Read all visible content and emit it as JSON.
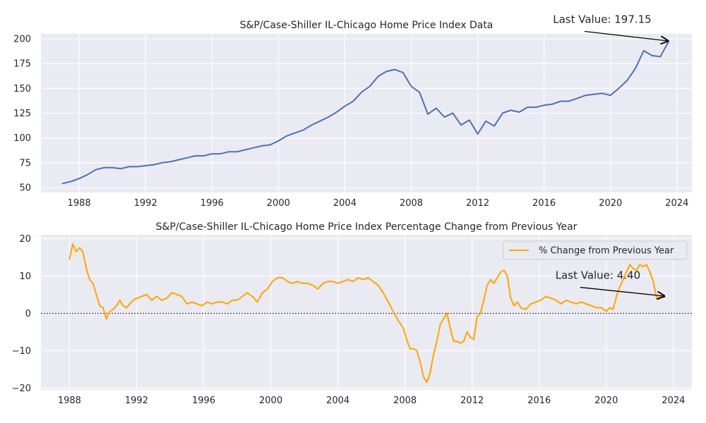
{
  "colors": {
    "price_line": "#4c72b0",
    "pct_line": "#ffa500",
    "plot_background": "#eaeaf2",
    "grid": "#ffffff"
  },
  "chart_data": [
    {
      "type": "line",
      "title": "S&P/Case-Shiller IL-Chicago Home Price Index Data",
      "xlabel": "",
      "ylabel": "",
      "xlim": [
        1985.7,
        2024.9
      ],
      "ylim": [
        45,
        205
      ],
      "x_ticks": [
        1988,
        1992,
        1996,
        2000,
        2004,
        2008,
        2012,
        2016,
        2020,
        2024
      ],
      "x_tick_labels": [
        "1988",
        "1992",
        "1996",
        "2000",
        "2004",
        "2008",
        "2012",
        "2016",
        "2020",
        "2024"
      ],
      "y_ticks": [
        50,
        75,
        100,
        125,
        150,
        175,
        200
      ],
      "y_tick_labels": [
        "50",
        "75",
        "100",
        "125",
        "150",
        "175",
        "200"
      ],
      "grid": true,
      "annotation": {
        "text": "Last Value: 197.15",
        "point": [
          2023.5,
          197.15
        ],
        "text_pos": [
          2019.5,
          216
        ]
      },
      "series": [
        {
          "name": "Home Price Index",
          "x": [
            1987.0,
            1987.5,
            1988.0,
            1988.5,
            1989.0,
            1989.5,
            1990.0,
            1990.5,
            1991.0,
            1991.5,
            1992.0,
            1992.5,
            1993.0,
            1993.5,
            1994.0,
            1994.5,
            1995.0,
            1995.5,
            1996.0,
            1996.5,
            1997.0,
            1997.5,
            1998.0,
            1998.5,
            1999.0,
            1999.5,
            2000.0,
            2000.5,
            2001.0,
            2001.5,
            2002.0,
            2002.5,
            2003.0,
            2003.5,
            2004.0,
            2004.5,
            2005.0,
            2005.5,
            2006.0,
            2006.5,
            2007.0,
            2007.5,
            2008.0,
            2008.5,
            2009.0,
            2009.5,
            2010.0,
            2010.5,
            2011.0,
            2011.5,
            2012.0,
            2012.5,
            2013.0,
            2013.5,
            2014.0,
            2014.5,
            2015.0,
            2015.5,
            2016.0,
            2016.5,
            2017.0,
            2017.5,
            2018.0,
            2018.5,
            2019.0,
            2019.5,
            2020.0,
            2020.5,
            2021.0,
            2021.5,
            2022.0,
            2022.5,
            2023.0,
            2023.5
          ],
          "y": [
            54,
            56,
            59,
            63,
            68,
            70,
            70,
            69,
            71,
            71,
            72,
            73,
            75,
            76,
            78,
            80,
            82,
            82,
            84,
            84,
            86,
            86,
            88,
            90,
            92,
            93,
            97,
            102,
            105,
            108,
            113,
            117,
            121,
            126,
            132,
            137,
            146,
            152,
            162,
            167,
            169,
            166,
            152,
            146,
            124,
            130,
            121,
            125,
            113,
            118,
            104,
            117,
            112,
            125,
            128,
            126,
            131,
            131,
            133,
            134,
            137,
            137,
            140,
            143,
            144,
            145,
            143,
            150,
            158,
            170,
            188,
            183,
            182,
            197.15
          ]
        }
      ]
    },
    {
      "type": "line",
      "title": "S&P/Case-Shiller IL-Chicago Home Price Index Percentage Change from Previous Year",
      "xlabel": "",
      "ylabel": "",
      "xlim": [
        1986.3,
        2025.1
      ],
      "ylim": [
        -20.5,
        21
      ],
      "x_ticks": [
        1988,
        1992,
        1996,
        2000,
        2004,
        2008,
        2012,
        2016,
        2020,
        2024
      ],
      "x_tick_labels": [
        "1988",
        "1992",
        "1996",
        "2000",
        "2004",
        "2008",
        "2012",
        "2016",
        "2020",
        "2024"
      ],
      "y_ticks": [
        -20,
        -10,
        0,
        10,
        20
      ],
      "y_tick_labels": [
        "−20",
        "−10",
        "0",
        "10",
        "20"
      ],
      "grid": true,
      "zero_line": true,
      "legend": {
        "position": "top-right",
        "entries": [
          "% Change from Previous Year"
        ]
      },
      "annotation": {
        "text": "Last Value: 4.40",
        "point": [
          2023.5,
          4.4
        ],
        "text_pos": [
          2019.5,
          9.2
        ]
      },
      "series": [
        {
          "name": "% Change from Previous Year",
          "x": [
            1988.0,
            1988.2,
            1988.4,
            1988.6,
            1988.8,
            1989.0,
            1989.2,
            1989.4,
            1989.6,
            1989.8,
            1990.0,
            1990.2,
            1990.4,
            1990.6,
            1990.8,
            1991.0,
            1991.2,
            1991.4,
            1991.6,
            1991.8,
            1992.0,
            1992.3,
            1992.6,
            1992.9,
            1993.2,
            1993.5,
            1993.8,
            1994.1,
            1994.4,
            1994.7,
            1995.0,
            1995.3,
            1995.6,
            1995.9,
            1996.2,
            1996.5,
            1996.8,
            1997.1,
            1997.4,
            1997.7,
            1998.0,
            1998.3,
            1998.6,
            1998.9,
            1999.2,
            1999.5,
            1999.8,
            2000.1,
            2000.4,
            2000.7,
            2001.0,
            2001.3,
            2001.6,
            2001.9,
            2002.2,
            2002.5,
            2002.8,
            2003.1,
            2003.4,
            2003.7,
            2004.0,
            2004.3,
            2004.6,
            2004.9,
            2005.2,
            2005.5,
            2005.8,
            2006.1,
            2006.4,
            2006.7,
            2007.0,
            2007.3,
            2007.6,
            2007.9,
            2008.1,
            2008.3,
            2008.5,
            2008.7,
            2008.9,
            2009.1,
            2009.3,
            2009.5,
            2009.7,
            2009.9,
            2010.1,
            2010.3,
            2010.5,
            2010.7,
            2010.9,
            2011.1,
            2011.3,
            2011.5,
            2011.7,
            2011.9,
            2012.1,
            2012.3,
            2012.5,
            2012.7,
            2012.9,
            2013.1,
            2013.3,
            2013.5,
            2013.7,
            2013.9,
            2014.1,
            2014.3,
            2014.5,
            2014.7,
            2014.9,
            2015.2,
            2015.5,
            2015.8,
            2016.1,
            2016.4,
            2016.7,
            2017.0,
            2017.3,
            2017.6,
            2017.9,
            2018.2,
            2018.5,
            2018.8,
            2019.1,
            2019.4,
            2019.7,
            2020.0,
            2020.2,
            2020.4,
            2020.6,
            2020.8,
            2021.0,
            2021.2,
            2021.4,
            2021.6,
            2021.8,
            2022.0,
            2022.2,
            2022.4,
            2022.6,
            2022.8,
            2023.0,
            2023.2,
            2023.5
          ],
          "y": [
            14.5,
            18.5,
            16.5,
            17.5,
            16.5,
            12.0,
            9.0,
            8.0,
            5.0,
            2.0,
            1.5,
            -1.5,
            0.5,
            1.0,
            2.0,
            3.5,
            2.0,
            1.5,
            2.5,
            3.5,
            4.0,
            4.5,
            5.0,
            3.5,
            4.5,
            3.5,
            4.0,
            5.5,
            5.0,
            4.5,
            2.5,
            3.0,
            2.5,
            2.0,
            3.0,
            2.5,
            3.0,
            3.0,
            2.5,
            3.5,
            3.5,
            4.5,
            5.5,
            4.5,
            3.0,
            5.5,
            6.5,
            8.5,
            9.5,
            9.5,
            8.5,
            8.0,
            8.5,
            8.0,
            8.0,
            7.5,
            6.5,
            8.0,
            8.5,
            8.5,
            8.0,
            8.5,
            9.0,
            8.5,
            9.5,
            9.0,
            9.5,
            8.5,
            7.5,
            5.5,
            3.0,
            0.5,
            -2.0,
            -4.0,
            -7.0,
            -9.5,
            -9.5,
            -10.0,
            -13.0,
            -17.0,
            -18.5,
            -16.0,
            -11.0,
            -7.5,
            -3.0,
            -1.5,
            0.0,
            -4.0,
            -7.5,
            -7.5,
            -8.0,
            -7.5,
            -5.0,
            -6.5,
            -7.0,
            -1.0,
            0.0,
            3.5,
            7.5,
            9.0,
            8.0,
            9.5,
            11.0,
            11.5,
            10.0,
            4.0,
            2.0,
            3.0,
            1.5,
            1.0,
            2.5,
            3.0,
            3.5,
            4.5,
            4.0,
            3.5,
            2.5,
            3.5,
            3.0,
            2.5,
            3.0,
            2.5,
            2.0,
            1.5,
            1.5,
            0.5,
            1.5,
            1.0,
            4.5,
            7.0,
            9.0,
            11.0,
            13.0,
            12.0,
            11.5,
            13.0,
            12.5,
            13.0,
            11.0,
            8.5,
            4.0,
            4.5,
            4.4
          ]
        }
      ]
    }
  ]
}
